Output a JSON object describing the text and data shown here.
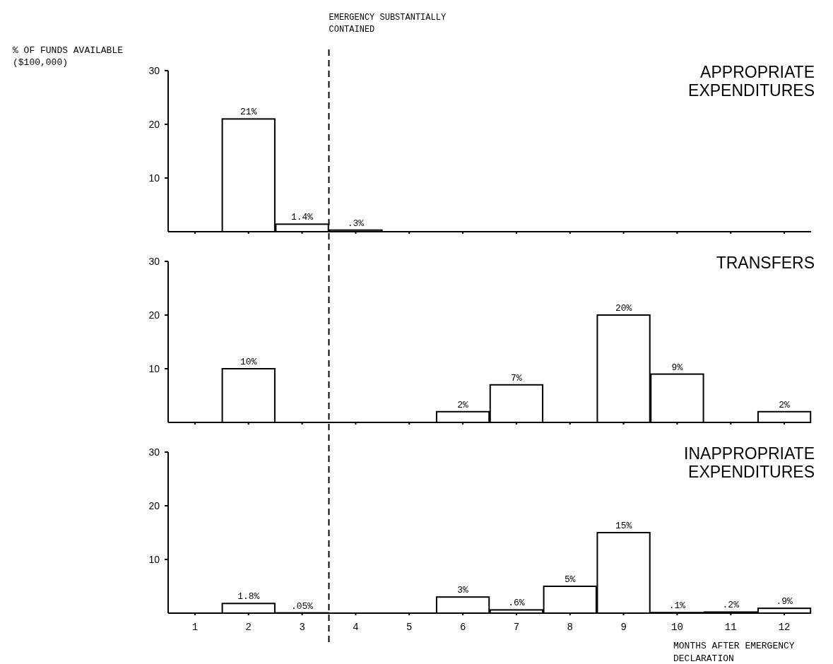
{
  "chart_data": [
    {
      "type": "bar",
      "title": "APPROPRIATE EXPENDITURES",
      "ylabel": "% OF FUNDS AVAILABLE ($100,000)",
      "x": [
        2,
        3,
        4
      ],
      "values": [
        21,
        1.4,
        0.3
      ],
      "value_labels": [
        "21%",
        "1.4%",
        ".3%"
      ],
      "color": "#ffffff",
      "xlim": [
        0.5,
        12.5
      ],
      "xticks": [
        {
          "value": 1,
          "label": null
        },
        {
          "value": 2,
          "label": null
        },
        {
          "value": 3,
          "label": null
        },
        {
          "value": 4,
          "label": null
        },
        {
          "value": 5,
          "label": null
        },
        {
          "value": 6,
          "label": null
        },
        {
          "value": 7,
          "label": null
        },
        {
          "value": 8,
          "label": null
        },
        {
          "value": 9,
          "label": null
        },
        {
          "value": 10,
          "label": null
        },
        {
          "value": 11,
          "label": null
        },
        {
          "value": 12,
          "label": null
        }
      ],
      "ylim": [
        0,
        30
      ],
      "yticks": [
        10,
        20,
        30
      ],
      "tick_labels": "y",
      "ref_lines": [
        {
          "axis": "x",
          "value": 3.5,
          "label": "EMERGENCY SUBSTANTIALLY CONTAINED",
          "line_style": "dashed"
        }
      ]
    },
    {
      "type": "bar",
      "title": "TRANSFERS",
      "x": [
        2,
        6,
        7,
        9,
        10,
        12
      ],
      "values": [
        10,
        2,
        7,
        20,
        9,
        2
      ],
      "value_labels": [
        "10%",
        "2%",
        "7%",
        "20%",
        "9%",
        "2%"
      ],
      "color": "#ffffff",
      "xlim": [
        0.5,
        12.5
      ],
      "xticks": [
        {
          "value": 1,
          "label": null
        },
        {
          "value": 2,
          "label": null
        },
        {
          "value": 3,
          "label": null
        },
        {
          "value": 4,
          "label": null
        },
        {
          "value": 5,
          "label": null
        },
        {
          "value": 6,
          "label": null
        },
        {
          "value": 7,
          "label": null
        },
        {
          "value": 8,
          "label": null
        },
        {
          "value": 9,
          "label": null
        },
        {
          "value": 10,
          "label": null
        },
        {
          "value": 11,
          "label": null
        },
        {
          "value": 12,
          "label": null
        }
      ],
      "ylim": [
        0,
        30
      ],
      "yticks": [
        10,
        20,
        30
      ],
      "tick_labels": "y",
      "ref_lines": [
        {
          "axis": "x",
          "value": 3.5,
          "line_style": "dashed"
        }
      ]
    },
    {
      "type": "bar",
      "title": "INAPPROPRIATE EXPENDITURES",
      "xlabel": "MONTHS AFTER EMERGENCY DECLARATION",
      "x": [
        2,
        3,
        6,
        7,
        8,
        9,
        10,
        11,
        12
      ],
      "values": [
        1.8,
        0.05,
        3,
        0.6,
        5,
        15,
        0.1,
        0.2,
        0.9
      ],
      "value_labels": [
        "1.8%",
        ".05%",
        "3%",
        ".6%",
        "5%",
        "15%",
        ".1%",
        ".2%",
        ".9%"
      ],
      "color": "#ffffff",
      "xlim": [
        0.5,
        12.5
      ],
      "xticks": [
        1,
        2,
        3,
        4,
        5,
        6,
        7,
        8,
        9,
        10,
        11,
        12
      ],
      "ylim": [
        0,
        30
      ],
      "yticks": [
        10,
        20,
        30
      ],
      "ref_lines": [
        {
          "axis": "x",
          "value": 3.5,
          "line_style": "dashed"
        }
      ]
    }
  ]
}
